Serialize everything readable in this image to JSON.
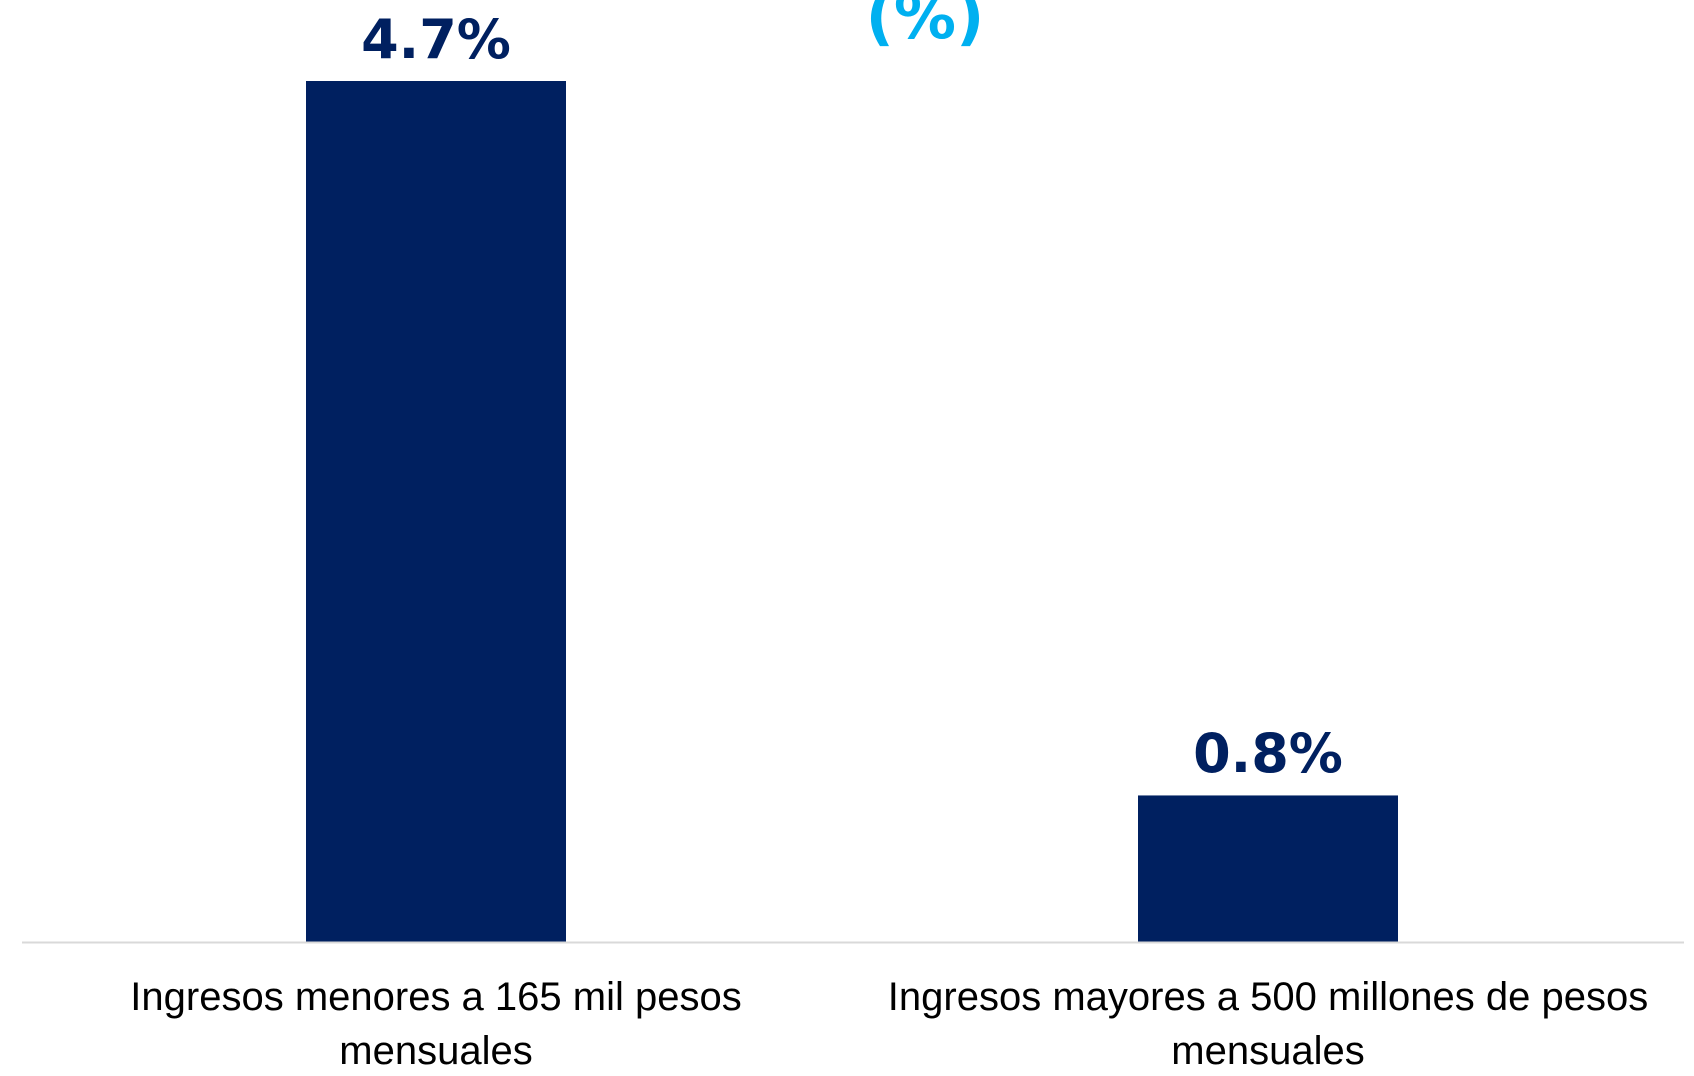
{
  "chart_data": {
    "type": "bar",
    "title": "(%)",
    "categories": [
      "Ingresos menores a 165 mil pesos mensuales",
      "Ingresos mayores a 500 millones de pesos mensuales"
    ],
    "values": [
      4.7,
      0.8
    ],
    "value_labels": [
      "4.7%",
      "0.8%"
    ],
    "color": "#002060",
    "title_color": "#00b0f0"
  }
}
